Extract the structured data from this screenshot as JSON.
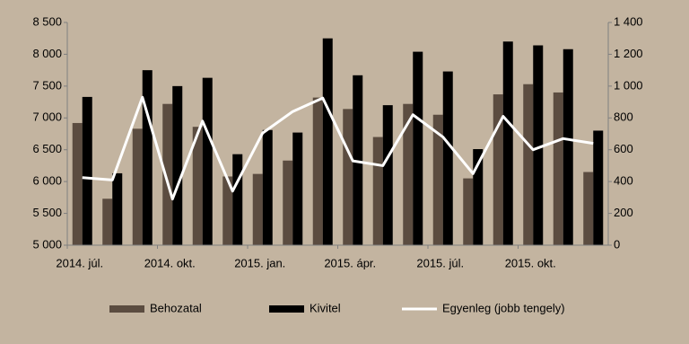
{
  "chart_data": {
    "type": "bar_line",
    "categories": [
      "2014. júl.",
      null,
      null,
      "2014. okt.",
      null,
      null,
      "2015. jan.",
      null,
      null,
      "2015. ápr.",
      null,
      null,
      "2015. júl.",
      null,
      null,
      "2015. okt.",
      null,
      null
    ],
    "series": [
      {
        "name": "Behozatal",
        "color": "#5b4c40",
        "type": "bar",
        "values": [
          6920,
          5730,
          6830,
          7220,
          6860,
          6080,
          6120,
          6330,
          7320,
          7140,
          6700,
          7220,
          7050,
          6050,
          7370,
          7530,
          7400,
          6150
        ]
      },
      {
        "name": "Kivitel",
        "color": "#000000",
        "type": "bar",
        "values": [
          7330,
          6130,
          7750,
          7500,
          7630,
          6430,
          6810,
          6770,
          8250,
          7670,
          7200,
          8040,
          7730,
          6510,
          8200,
          8140,
          8080,
          6800
        ]
      },
      {
        "name": "Egyenleg (jobb tengely)",
        "color": "#ffffff",
        "type": "line",
        "axis": "y2",
        "values": [
          425,
          410,
          930,
          290,
          780,
          340,
          705,
          840,
          925,
          530,
          500,
          820,
          680,
          450,
          810,
          600,
          670,
          640
        ]
      }
    ],
    "ylim": [
      5000,
      8500
    ],
    "yticks": [
      {
        "value": 5000,
        "label": "5 000"
      },
      {
        "value": 5500,
        "label": "5 500"
      },
      {
        "value": 6000,
        "label": "6 000"
      },
      {
        "value": 6500,
        "label": "6 500"
      },
      {
        "value": 7000,
        "label": "7 000"
      },
      {
        "value": 7500,
        "label": "7 500"
      },
      {
        "value": 8000,
        "label": "8 000"
      },
      {
        "value": 8500,
        "label": "8 500"
      }
    ],
    "y2lim": [
      0,
      1400
    ],
    "y2ticks": [
      0,
      200,
      400,
      600,
      800,
      {
        "value": 1000,
        "label": "1 000"
      },
      {
        "value": 1200,
        "label": "1 200"
      },
      {
        "value": 1400,
        "label": "1 400"
      }
    ],
    "legend": "bottom"
  }
}
